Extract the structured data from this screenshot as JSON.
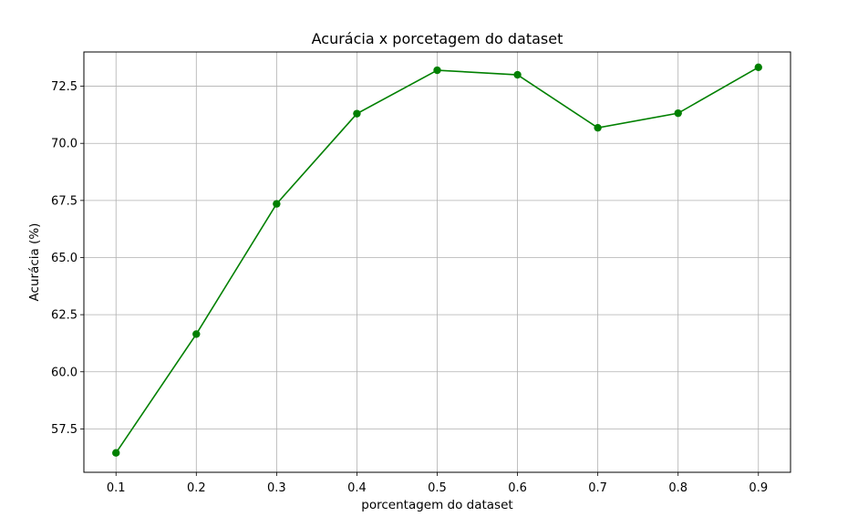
{
  "chart_data": {
    "type": "line",
    "title": "Acurácia x porcetagem do dataset",
    "xlabel": "porcentagem do dataset",
    "ylabel": "Acurácia (%)",
    "x": [
      0.1,
      0.2,
      0.3,
      0.4,
      0.5,
      0.6,
      0.7,
      0.8,
      0.9
    ],
    "xticks": [
      "0.1",
      "0.2",
      "0.3",
      "0.4",
      "0.5",
      "0.6",
      "0.7",
      "0.8",
      "0.9"
    ],
    "yticks": [
      "57.5",
      "60.0",
      "62.5",
      "65.0",
      "67.5",
      "70.0",
      "72.5"
    ],
    "series": [
      {
        "values": [
          56.45,
          61.65,
          67.35,
          71.3,
          73.2,
          73.0,
          70.68,
          71.32,
          73.33
        ],
        "color": "#008000",
        "marker": "circle"
      }
    ],
    "xlim": [
      0.06,
      0.94
    ],
    "ylim": [
      55.6,
      74.0
    ],
    "grid": true
  }
}
